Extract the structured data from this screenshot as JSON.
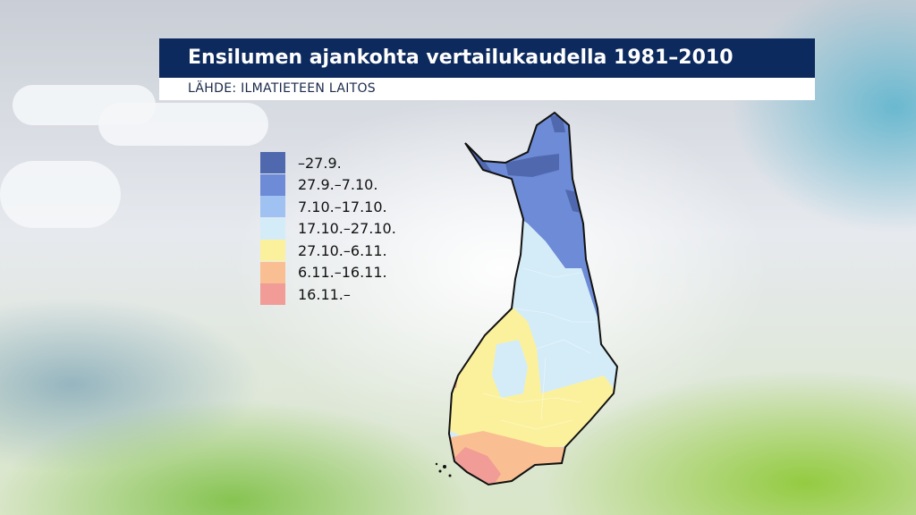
{
  "header": {
    "title": "Ensilumen ajankohta vertailukaudella 1981–2010",
    "source": "LÄHDE: ILMATIETEEN LAITOS"
  },
  "legend": {
    "items": [
      {
        "label": "–27.9.",
        "color": "#5068ae"
      },
      {
        "label": "27.9.–7.10.",
        "color": "#6d8bd6"
      },
      {
        "label": "7.10.–17.10.",
        "color": "#9fc2f2"
      },
      {
        "label": "17.10.–27.10.",
        "color": "#d4ecf8"
      },
      {
        "label": "27.10.–6.11.",
        "color": "#fbf19c"
      },
      {
        "label": "6.11.–16.11.",
        "color": "#f9bf93"
      },
      {
        "label": "16.11.–",
        "color": "#f19c96"
      }
    ]
  },
  "map": {
    "region": "Finland",
    "zones": [
      {
        "legend_index": 1,
        "area": "Lapland north and fells"
      },
      {
        "legend_index": 0,
        "area": "Highest fells of northwestern and northern Lapland"
      },
      {
        "legend_index": 3,
        "area": "Central and eastern Finland"
      },
      {
        "legend_index": 4,
        "area": "Western and southern inland"
      },
      {
        "legend_index": 5,
        "area": "Southern coast"
      },
      {
        "legend_index": 6,
        "area": "Southwestern archipelago"
      }
    ]
  }
}
